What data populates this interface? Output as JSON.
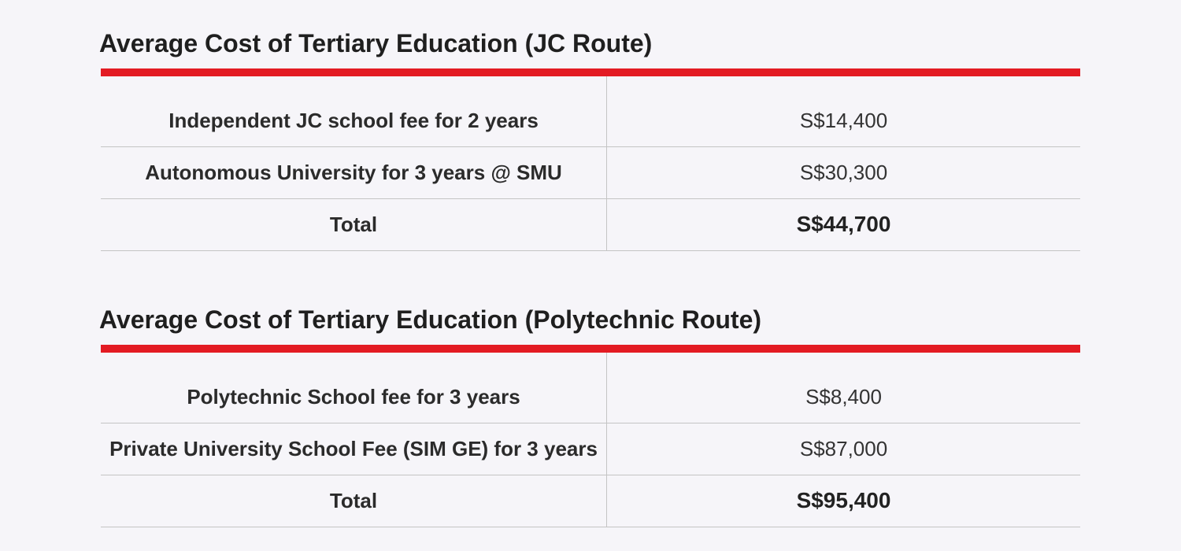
{
  "tables": [
    {
      "title": "Average Cost of Tertiary Education (JC Route)",
      "rows": [
        {
          "item": "Independent JC school fee for 2 years",
          "cost": "S$14,400"
        },
        {
          "item": "Autonomous University for 3 years @ SMU",
          "cost": "S$30,300"
        }
      ],
      "total": {
        "label": "Total",
        "cost": "S$44,700"
      }
    },
    {
      "title": "Average Cost of Tertiary Education (Polytechnic Route)",
      "rows": [
        {
          "item": "Polytechnic School fee for 3 years",
          "cost": "S$8,400"
        },
        {
          "item": "Private University School Fee (SIM GE) for 3 years",
          "cost": "S$87,000"
        }
      ],
      "total": {
        "label": "Total",
        "cost": "S$95,400"
      }
    }
  ],
  "colors": {
    "accent_rule": "#e31b23",
    "background": "#f6f5f9",
    "divider": "#c4c4c4"
  }
}
